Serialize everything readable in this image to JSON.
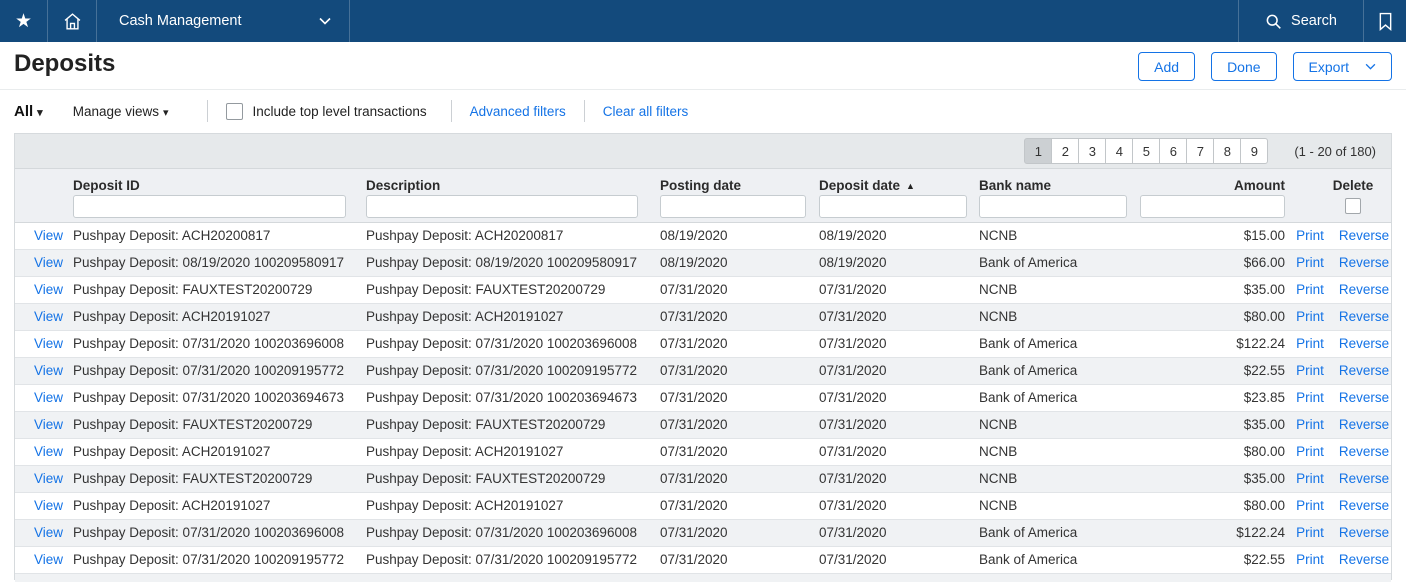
{
  "nav": {
    "menu_label": "Cash Management",
    "search_label": "Search"
  },
  "page": {
    "title": "Deposits"
  },
  "toolbar": {
    "add_label": "Add",
    "done_label": "Done",
    "export_label": "Export"
  },
  "filter_bar": {
    "view_selector_label": "All",
    "manage_views_label": "Manage views",
    "include_checkbox_label": "Include top level transactions",
    "advanced_filters_label": "Advanced filters",
    "clear_filters_label": "Clear all filters"
  },
  "pagination": {
    "pages": [
      "1",
      "2",
      "3",
      "4",
      "5",
      "6",
      "7",
      "8",
      "9"
    ],
    "active_page": "1",
    "range_label": "(1 - 20 of 180)"
  },
  "table": {
    "column_headers": {
      "deposit_id": "Deposit ID",
      "description": "Description",
      "posting_date": "Posting date",
      "deposit_date": "Deposit date",
      "bank_name": "Bank name",
      "amount": "Amount",
      "delete": "Delete"
    },
    "sort": {
      "column": "deposit_date",
      "direction": "asc",
      "indicator": "▲"
    },
    "filter_inputs": {
      "deposit_id": "",
      "description": "",
      "posting_date": "",
      "deposit_date": "",
      "bank_name": "",
      "amount": ""
    },
    "link_labels": {
      "view": "View",
      "print": "Print",
      "reverse": "Reverse"
    },
    "rows": [
      {
        "deposit_id": "Pushpay Deposit: ACH20200817",
        "description": "Pushpay Deposit: ACH20200817",
        "posting_date": "08/19/2020",
        "deposit_date": "08/19/2020",
        "bank_name": "NCNB",
        "amount": "$15.00"
      },
      {
        "deposit_id": "Pushpay Deposit: 08/19/2020 100209580917",
        "description": "Pushpay Deposit: 08/19/2020 100209580917",
        "posting_date": "08/19/2020",
        "deposit_date": "08/19/2020",
        "bank_name": "Bank of America",
        "amount": "$66.00"
      },
      {
        "deposit_id": "Pushpay Deposit: FAUXTEST20200729",
        "description": "Pushpay Deposit: FAUXTEST20200729",
        "posting_date": "07/31/2020",
        "deposit_date": "07/31/2020",
        "bank_name": "NCNB",
        "amount": "$35.00"
      },
      {
        "deposit_id": "Pushpay Deposit: ACH20191027",
        "description": "Pushpay Deposit: ACH20191027",
        "posting_date": "07/31/2020",
        "deposit_date": "07/31/2020",
        "bank_name": "NCNB",
        "amount": "$80.00"
      },
      {
        "deposit_id": "Pushpay Deposit: 07/31/2020 100203696008",
        "description": "Pushpay Deposit: 07/31/2020 100203696008",
        "posting_date": "07/31/2020",
        "deposit_date": "07/31/2020",
        "bank_name": "Bank of America",
        "amount": "$122.24"
      },
      {
        "deposit_id": "Pushpay Deposit: 07/31/2020 100209195772",
        "description": "Pushpay Deposit: 07/31/2020 100209195772",
        "posting_date": "07/31/2020",
        "deposit_date": "07/31/2020",
        "bank_name": "Bank of America",
        "amount": "$22.55"
      },
      {
        "deposit_id": "Pushpay Deposit: 07/31/2020 100203694673",
        "description": "Pushpay Deposit: 07/31/2020 100203694673",
        "posting_date": "07/31/2020",
        "deposit_date": "07/31/2020",
        "bank_name": "Bank of America",
        "amount": "$23.85"
      },
      {
        "deposit_id": "Pushpay Deposit: FAUXTEST20200729",
        "description": "Pushpay Deposit: FAUXTEST20200729",
        "posting_date": "07/31/2020",
        "deposit_date": "07/31/2020",
        "bank_name": "NCNB",
        "amount": "$35.00"
      },
      {
        "deposit_id": "Pushpay Deposit: ACH20191027",
        "description": "Pushpay Deposit: ACH20191027",
        "posting_date": "07/31/2020",
        "deposit_date": "07/31/2020",
        "bank_name": "NCNB",
        "amount": "$80.00"
      },
      {
        "deposit_id": "Pushpay Deposit: FAUXTEST20200729",
        "description": "Pushpay Deposit: FAUXTEST20200729",
        "posting_date": "07/31/2020",
        "deposit_date": "07/31/2020",
        "bank_name": "NCNB",
        "amount": "$35.00"
      },
      {
        "deposit_id": "Pushpay Deposit: ACH20191027",
        "description": "Pushpay Deposit: ACH20191027",
        "posting_date": "07/31/2020",
        "deposit_date": "07/31/2020",
        "bank_name": "NCNB",
        "amount": "$80.00"
      },
      {
        "deposit_id": "Pushpay Deposit: 07/31/2020 100203696008",
        "description": "Pushpay Deposit: 07/31/2020 100203696008",
        "posting_date": "07/31/2020",
        "deposit_date": "07/31/2020",
        "bank_name": "Bank of America",
        "amount": "$122.24"
      },
      {
        "deposit_id": "Pushpay Deposit: 07/31/2020 100209195772",
        "description": "Pushpay Deposit: 07/31/2020 100209195772",
        "posting_date": "07/31/2020",
        "deposit_date": "07/31/2020",
        "bank_name": "Bank of America",
        "amount": "$22.55"
      }
    ]
  },
  "colors": {
    "nav_background": "#134a7c",
    "accent_blue": "#1473e6",
    "band_background": "#e6e9eb",
    "header_band_background": "#eef0f3",
    "row_alt_background": "#f0f2f4"
  }
}
